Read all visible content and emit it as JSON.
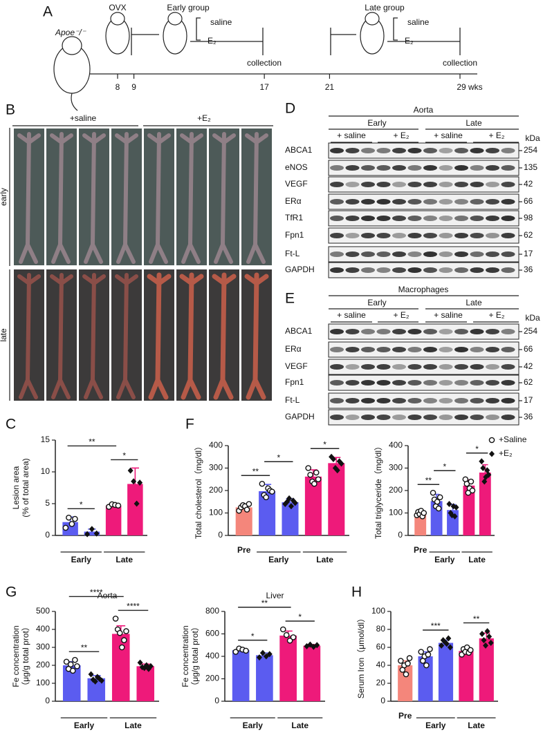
{
  "panel_labels": [
    "A",
    "B",
    "C",
    "D",
    "E",
    "F",
    "G",
    "H"
  ],
  "timeline": {
    "strain": "Apoe⁻/⁻",
    "ovx": "OVX",
    "early_group": "Early group",
    "late_group": "Late group",
    "treatments": [
      "saline",
      "E₂"
    ],
    "collection": "collection",
    "weeks": [
      8,
      9,
      17,
      21,
      {
        "value": 29,
        "label": "29 wks"
      }
    ]
  },
  "photos": {
    "columns": [
      "+saline",
      "+E₂"
    ],
    "rows": [
      "early",
      "late"
    ]
  },
  "blots": [
    {
      "title": "Aorta",
      "groups": [
        "Early",
        "Late"
      ],
      "treatments": [
        "+ saline",
        "+ E₂"
      ],
      "unit": "kDa",
      "rows": [
        {
          "protein": "ABCA1",
          "kda": 254
        },
        {
          "protein": "eNOS",
          "kda": 135
        },
        {
          "protein": "VEGF",
          "kda": 42
        },
        {
          "protein": "ERα",
          "kda": 66
        },
        {
          "protein": "TfR1",
          "kda": 98
        },
        {
          "protein": "Fpn1",
          "kda": 62
        },
        {
          "protein": "Ft-L",
          "kda": 17
        },
        {
          "protein": "GAPDH",
          "kda": 36
        }
      ]
    },
    {
      "title": "Macrophages",
      "groups": [
        "Early",
        "Late"
      ],
      "treatments": [
        "+ saline",
        "+ E₂"
      ],
      "unit": "kDa",
      "rows": [
        {
          "protein": "ABCA1",
          "kda": 254
        },
        {
          "protein": "ERα",
          "kda": 66
        },
        {
          "protein": "VEGF",
          "kda": 42
        },
        {
          "protein": "Fpn1",
          "kda": 62
        },
        {
          "protein": "Ft-L",
          "kda": 17
        },
        {
          "protein": "GAPDH",
          "kda": 36
        }
      ]
    }
  ],
  "chart_data": [
    {
      "type": "bar",
      "y_label": [
        "Lesion area",
        "(% of total area)"
      ],
      "ylim": [
        0,
        15
      ],
      "yticks": [
        0,
        5,
        10,
        15
      ],
      "groups": [
        {
          "label": "Early",
          "bars": [
            {
              "color": "#5b5cf0",
              "marker": "circle",
              "value": 2.1,
              "error": 0.8,
              "points": [
                1.2,
                2.8,
                1.8,
                2.6
              ]
            },
            {
              "color": "#5b5cf0",
              "marker": "diamond",
              "value": 0.6,
              "error": 0.4,
              "points": [
                0.2,
                1.0,
                0.3
              ]
            }
          ]
        },
        {
          "label": "Late",
          "bars": [
            {
              "color": "#ee1a7a",
              "marker": "circle",
              "value": 4.7,
              "error": 0.2,
              "points": [
                4.5,
                4.9,
                4.8,
                4.7
              ]
            },
            {
              "color": "#ee1a7a",
              "marker": "diamond",
              "value": 8.1,
              "error": 2.5,
              "points": [
                10.2,
                8.5,
                5.0,
                8.3
              ]
            }
          ]
        }
      ],
      "significance": [
        {
          "label": "*",
          "bars": [
            0,
            1
          ]
        },
        {
          "label": "*",
          "bars": [
            2,
            3
          ]
        },
        {
          "label": "**",
          "bars": [
            0,
            2
          ]
        }
      ]
    },
    {
      "type": "bar",
      "y_label": [
        "Total cholesterol（mg/dl）"
      ],
      "ylim": [
        0,
        400
      ],
      "yticks": [
        0,
        100,
        200,
        300,
        400
      ],
      "groups": [
        {
          "label": "Pre",
          "bars": [
            {
              "color": "#f4867b",
              "marker": "circle",
              "value": 125,
              "error": 12,
              "points": [
                110,
                125,
                135,
                130,
                115,
                140
              ]
            }
          ]
        },
        {
          "label": "Early",
          "bars": [
            {
              "color": "#5b5cf0",
              "marker": "circle",
              "value": 197,
              "error": 30,
              "points": [
                230,
                180,
                170,
                210,
                200,
                195
              ]
            },
            {
              "color": "#5b5cf0",
              "marker": "diamond",
              "value": 148,
              "error": 15,
              "points": [
                140,
                150,
                165,
                130,
                155,
                145
              ]
            }
          ]
        },
        {
          "label": "Late",
          "bars": [
            {
              "color": "#ee1a7a",
              "marker": "circle",
              "value": 262,
              "error": 30,
              "points": [
                300,
                270,
                240,
                230,
                280,
                250
              ]
            },
            {
              "color": "#ee1a7a",
              "marker": "diamond",
              "value": 322,
              "error": 25,
              "points": [
                350,
                340,
                300,
                290,
                330,
                320
              ]
            }
          ]
        }
      ],
      "significance": [
        {
          "label": "**",
          "bars": [
            0,
            1
          ]
        },
        {
          "label": "*",
          "bars": [
            1,
            2
          ]
        },
        {
          "label": "*",
          "bars": [
            3,
            4
          ]
        }
      ]
    },
    {
      "type": "bar",
      "y_label": [
        "Total triglyceride（mg/dl）"
      ],
      "ylim": [
        0,
        400
      ],
      "yticks": [
        0,
        100,
        200,
        300,
        400
      ],
      "legend": [
        {
          "name": "+Saline",
          "marker": "circle"
        },
        {
          "name": "+E₂",
          "marker": "diamond"
        }
      ],
      "groups": [
        {
          "label": "Pre",
          "bars": [
            {
              "color": "#f4867b",
              "marker": "circle",
              "value": 100,
              "error": 10,
              "points": [
                90,
                105,
                95,
                110,
                85,
                100
              ]
            }
          ]
        },
        {
          "label": "Early",
          "bars": [
            {
              "color": "#5b5cf0",
              "marker": "circle",
              "value": 153,
              "error": 30,
              "points": [
                190,
                160,
                130,
                150,
                120,
                170
              ]
            },
            {
              "color": "#5b5cf0",
              "marker": "diamond",
              "value": 113,
              "error": 25,
              "points": [
                140,
                100,
                90,
                130,
                85,
                125
              ]
            }
          ]
        },
        {
          "label": "Late",
          "bars": [
            {
              "color": "#ee1a7a",
              "marker": "circle",
              "value": 222,
              "error": 25,
              "points": [
                250,
                230,
                190,
                210,
                240,
                200
              ]
            },
            {
              "color": "#ee1a7a",
              "marker": "diamond",
              "value": 280,
              "error": 35,
              "points": [
                330,
                300,
                240,
                260,
                290,
                270
              ]
            }
          ]
        }
      ],
      "significance": [
        {
          "label": "**",
          "bars": [
            0,
            1
          ]
        },
        {
          "label": "*",
          "bars": [
            1,
            2
          ]
        },
        {
          "label": "*",
          "bars": [
            3,
            4
          ]
        }
      ]
    },
    {
      "type": "bar",
      "title": "Aorta",
      "y_label": [
        "Fe concentration",
        "（μg/g total prot）"
      ],
      "ylim": [
        0,
        500
      ],
      "yticks": [
        0,
        100,
        200,
        300,
        400,
        500
      ],
      "groups": [
        {
          "label": "Early",
          "bars": [
            {
              "color": "#5b5cf0",
              "marker": "circle",
              "value": 200,
              "error": 20,
              "points": [
                220,
                180,
                205,
                170,
                230,
                195
              ]
            },
            {
              "color": "#5b5cf0",
              "marker": "diamond",
              "value": 128,
              "error": 15,
              "points": [
                150,
                120,
                110,
                135,
                125,
                115
              ]
            }
          ]
        },
        {
          "label": "Late",
          "bars": [
            {
              "color": "#ee1a7a",
              "marker": "circle",
              "value": 375,
              "error": 45,
              "points": [
                460,
                400,
                380,
                300,
                340,
                390
              ]
            },
            {
              "color": "#ee1a7a",
              "marker": "diamond",
              "value": 195,
              "error": 12,
              "points": [
                215,
                190,
                185,
                200,
                180,
                195
              ]
            }
          ]
        }
      ],
      "significance": [
        {
          "label": "**",
          "bars": [
            0,
            1
          ]
        },
        {
          "label": "****",
          "bars": [
            2,
            3
          ]
        },
        {
          "label": "****",
          "bars": [
            0,
            2
          ]
        }
      ]
    },
    {
      "type": "bar",
      "title": "Liver",
      "y_label": [
        "Fe concentration",
        "（μg/g total prot）"
      ],
      "ylim": [
        0,
        800
      ],
      "yticks": [
        0,
        200,
        400,
        600,
        800
      ],
      "groups": [
        {
          "label": "Early",
          "bars": [
            {
              "color": "#5b5cf0",
              "marker": "circle",
              "value": 455,
              "error": 15,
              "points": [
                440,
                470,
                460,
                450
              ]
            },
            {
              "color": "#5b5cf0",
              "marker": "diamond",
              "value": 410,
              "error": 20,
              "points": [
                390,
                430,
                400,
                420
              ]
            }
          ]
        },
        {
          "label": "Late",
          "bars": [
            {
              "color": "#ee1a7a",
              "marker": "circle",
              "value": 585,
              "error": 40,
              "points": [
                640,
                590,
                540,
                570
              ]
            },
            {
              "color": "#ee1a7a",
              "marker": "diamond",
              "value": 495,
              "error": 10,
              "points": [
                490,
                505,
                485,
                500
              ]
            }
          ]
        }
      ],
      "significance": [
        {
          "label": "*",
          "bars": [
            0,
            1
          ]
        },
        {
          "label": "*",
          "bars": [
            2,
            3
          ]
        },
        {
          "label": "**",
          "bars": [
            0,
            2
          ]
        }
      ]
    },
    {
      "type": "bar",
      "y_label": [
        "Serum Iron（μmol/dl）"
      ],
      "ylim": [
        0,
        100
      ],
      "yticks": [
        0,
        20,
        40,
        60,
        80,
        100
      ],
      "groups": [
        {
          "label": "Pre",
          "bars": [
            {
              "color": "#f4867b",
              "marker": "circle",
              "value": 40,
              "error": 5,
              "points": [
                45,
                35,
                40,
                30,
                42,
                48
              ]
            }
          ]
        },
        {
          "label": "Early",
          "bars": [
            {
              "color": "#5b5cf0",
              "marker": "circle",
              "value": 50,
              "error": 5,
              "points": [
                55,
                45,
                50,
                40,
                52,
                58
              ]
            },
            {
              "color": "#5b5cf0",
              "marker": "diamond",
              "value": 65,
              "error": 3,
              "points": [
                62,
                68,
                66,
                64,
                70,
                60
              ]
            }
          ]
        },
        {
          "label": "Late",
          "bars": [
            {
              "color": "#ee1a7a",
              "marker": "circle",
              "value": 56,
              "error": 3,
              "points": [
                52,
                58,
                55,
                60,
                54,
                57
              ]
            },
            {
              "color": "#ee1a7a",
              "marker": "diamond",
              "value": 70,
              "error": 6,
              "points": [
                75,
                68,
                62,
                78,
                72,
                65
              ]
            }
          ]
        }
      ],
      "significance": [
        {
          "label": "***",
          "bars": [
            1,
            2
          ]
        },
        {
          "label": "**",
          "bars": [
            3,
            4
          ]
        }
      ]
    }
  ]
}
